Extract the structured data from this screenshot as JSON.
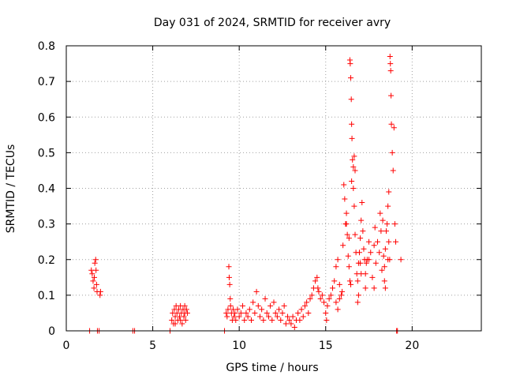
{
  "chart_data": {
    "type": "scatter",
    "title": "Day 031 of 2024, SRMTID for receiver avry",
    "xlabel": "GPS time / hours",
    "ylabel": "SRMTID / TECUs",
    "xlim": [
      0,
      24
    ],
    "ylim": [
      0,
      0.8
    ],
    "xticks": [
      0,
      5,
      10,
      15,
      20
    ],
    "yticks": [
      0,
      0.1,
      0.2,
      0.3,
      0.4,
      0.5,
      0.6,
      0.7,
      0.8
    ],
    "xtick_labels": [
      "0",
      "5",
      "10",
      "15",
      "20"
    ],
    "ytick_labels": [
      "0",
      "0.1",
      "0.2",
      "0.3",
      "0.4",
      "0.5",
      "0.6",
      "0.7",
      "0.8"
    ],
    "grid": true,
    "marker": "+",
    "color": "#ff0000",
    "series": [
      {
        "name": "SRMTID",
        "points": [
          [
            1.35,
            0
          ],
          [
            1.45,
            0.17
          ],
          [
            1.5,
            0.16
          ],
          [
            1.55,
            0.14
          ],
          [
            1.6,
            0.12
          ],
          [
            1.62,
            0.15
          ],
          [
            1.65,
            0.19
          ],
          [
            1.7,
            0.2
          ],
          [
            1.72,
            0.17
          ],
          [
            1.75,
            0.13
          ],
          [
            1.78,
            0.11
          ],
          [
            1.8,
            0.0
          ],
          [
            1.9,
            0.0
          ],
          [
            1.95,
            0.1
          ],
          [
            1.98,
            0.11
          ],
          [
            3.85,
            0
          ],
          [
            3.95,
            0
          ],
          [
            6.0,
            0
          ],
          [
            6.1,
            0.03
          ],
          [
            6.15,
            0.05
          ],
          [
            6.2,
            0.02
          ],
          [
            6.25,
            0.06
          ],
          [
            6.3,
            0.04
          ],
          [
            6.35,
            0.07
          ],
          [
            6.4,
            0.05
          ],
          [
            6.45,
            0.03
          ],
          [
            6.5,
            0.06
          ],
          [
            6.55,
            0.04
          ],
          [
            6.6,
            0.07
          ],
          [
            6.65,
            0.05
          ],
          [
            6.7,
            0.02
          ],
          [
            6.75,
            0.06
          ],
          [
            6.8,
            0.04
          ],
          [
            6.85,
            0.05
          ],
          [
            6.9,
            0.03
          ],
          [
            6.95,
            0.06
          ],
          [
            7.0,
            0.05
          ],
          [
            6.3,
            0.02
          ],
          [
            6.6,
            0.03
          ],
          [
            6.85,
            0.07
          ],
          [
            9.15,
            0
          ],
          [
            9.25,
            0.05
          ],
          [
            9.3,
            0.04
          ],
          [
            9.35,
            0.06
          ],
          [
            9.4,
            0.18
          ],
          [
            9.42,
            0.15
          ],
          [
            9.45,
            0.13
          ],
          [
            9.48,
            0.09
          ],
          [
            9.5,
            0.07
          ],
          [
            9.55,
            0.05
          ],
          [
            9.6,
            0.03
          ],
          [
            9.65,
            0.06
          ],
          [
            9.7,
            0.04
          ],
          [
            9.75,
            0.05
          ],
          [
            9.8,
            0.03
          ],
          [
            9.9,
            0.06
          ],
          [
            10.0,
            0.04
          ],
          [
            10.1,
            0.05
          ],
          [
            10.2,
            0.07
          ],
          [
            10.3,
            0.03
          ],
          [
            10.4,
            0.05
          ],
          [
            10.5,
            0.04
          ],
          [
            10.6,
            0.06
          ],
          [
            10.7,
            0.03
          ],
          [
            10.8,
            0.08
          ],
          [
            10.9,
            0.05
          ],
          [
            11.0,
            0.11
          ],
          [
            11.1,
            0.07
          ],
          [
            11.2,
            0.04
          ],
          [
            11.3,
            0.06
          ],
          [
            11.4,
            0.03
          ],
          [
            11.5,
            0.09
          ],
          [
            11.6,
            0.05
          ],
          [
            11.7,
            0.04
          ],
          [
            11.8,
            0.07
          ],
          [
            11.9,
            0.03
          ],
          [
            12.0,
            0.08
          ],
          [
            12.1,
            0.05
          ],
          [
            12.2,
            0.04
          ],
          [
            12.3,
            0.06
          ],
          [
            12.4,
            0.03
          ],
          [
            12.5,
            0.05
          ],
          [
            12.6,
            0.07
          ],
          [
            12.7,
            0.02
          ],
          [
            12.8,
            0.04
          ],
          [
            12.9,
            0.03
          ],
          [
            13.0,
            0.02
          ],
          [
            13.1,
            0.04
          ],
          [
            13.2,
            0.01
          ],
          [
            13.3,
            0.03
          ],
          [
            13.4,
            0.05
          ],
          [
            13.5,
            0.03
          ],
          [
            13.6,
            0.06
          ],
          [
            13.7,
            0.04
          ],
          [
            13.8,
            0.07
          ],
          [
            13.9,
            0.08
          ],
          [
            14.0,
            0.05
          ],
          [
            14.1,
            0.09
          ],
          [
            14.2,
            0.1
          ],
          [
            14.3,
            0.12
          ],
          [
            14.4,
            0.14
          ],
          [
            14.5,
            0.15
          ],
          [
            14.55,
            0.12
          ],
          [
            14.6,
            0.11
          ],
          [
            14.7,
            0.09
          ],
          [
            14.8,
            0.1
          ],
          [
            14.9,
            0.08
          ],
          [
            15.0,
            0.05
          ],
          [
            15.05,
            0.03
          ],
          [
            15.1,
            0.07
          ],
          [
            15.2,
            0.09
          ],
          [
            15.3,
            0.1
          ],
          [
            15.4,
            0.12
          ],
          [
            15.5,
            0.14
          ],
          [
            15.6,
            0.18
          ],
          [
            15.7,
            0.2
          ],
          [
            15.8,
            0.13
          ],
          [
            15.9,
            0.1
          ],
          [
            15.95,
            0.11
          ],
          [
            16.0,
            0.24
          ],
          [
            16.05,
            0.41
          ],
          [
            16.1,
            0.37
          ],
          [
            16.15,
            0.3
          ],
          [
            16.2,
            0.33
          ],
          [
            16.25,
            0.27
          ],
          [
            16.3,
            0.21
          ],
          [
            16.35,
            0.18
          ],
          [
            16.4,
            0.76
          ],
          [
            16.42,
            0.75
          ],
          [
            16.45,
            0.71
          ],
          [
            16.48,
            0.65
          ],
          [
            16.5,
            0.58
          ],
          [
            16.52,
            0.54
          ],
          [
            16.55,
            0.48
          ],
          [
            16.6,
            0.4
          ],
          [
            16.65,
            0.35
          ],
          [
            16.7,
            0.27
          ],
          [
            16.75,
            0.22
          ],
          [
            16.8,
            0.16
          ],
          [
            16.85,
            0.14
          ],
          [
            16.9,
            0.19
          ],
          [
            16.95,
            0.22
          ],
          [
            17.0,
            0.26
          ],
          [
            17.05,
            0.31
          ],
          [
            17.1,
            0.36
          ],
          [
            17.15,
            0.28
          ],
          [
            17.2,
            0.23
          ],
          [
            17.25,
            0.2
          ],
          [
            17.3,
            0.16
          ],
          [
            17.35,
            0.19
          ],
          [
            17.4,
            0.2
          ],
          [
            17.5,
            0.25
          ],
          [
            17.6,
            0.22
          ],
          [
            17.7,
            0.15
          ],
          [
            17.8,
            0.12
          ],
          [
            17.9,
            0.19
          ],
          [
            18.0,
            0.25
          ],
          [
            18.1,
            0.22
          ],
          [
            18.2,
            0.28
          ],
          [
            18.3,
            0.31
          ],
          [
            18.35,
            0.21
          ],
          [
            18.4,
            0.18
          ],
          [
            18.45,
            0.23
          ],
          [
            18.5,
            0.28
          ],
          [
            18.55,
            0.3
          ],
          [
            18.6,
            0.35
          ],
          [
            18.65,
            0.39
          ],
          [
            18.7,
            0.2
          ],
          [
            18.72,
            0.77
          ],
          [
            18.74,
            0.75
          ],
          [
            18.76,
            0.73
          ],
          [
            18.78,
            0.66
          ],
          [
            18.8,
            0.58
          ],
          [
            18.85,
            0.5
          ],
          [
            18.9,
            0.45
          ],
          [
            18.95,
            0.57
          ],
          [
            19.0,
            0.3
          ],
          [
            19.05,
            0.25
          ],
          [
            19.1,
            0
          ],
          [
            19.15,
            0
          ],
          [
            19.35,
            0.2
          ],
          [
            16.2,
            0.3
          ],
          [
            16.35,
            0.26
          ],
          [
            16.6,
            0.46
          ],
          [
            16.65,
            0.49
          ],
          [
            16.7,
            0.45
          ],
          [
            16.5,
            0.42
          ],
          [
            17.0,
            0.19
          ],
          [
            17.05,
            0.16
          ],
          [
            17.3,
            0.12
          ],
          [
            17.5,
            0.2
          ],
          [
            17.8,
            0.24
          ],
          [
            17.85,
            0.29
          ],
          [
            18.15,
            0.33
          ],
          [
            18.25,
            0.17
          ],
          [
            18.4,
            0.14
          ],
          [
            18.45,
            0.12
          ],
          [
            18.6,
            0.2
          ],
          [
            18.65,
            0.25
          ],
          [
            15.6,
            0.08
          ],
          [
            15.7,
            0.06
          ],
          [
            15.8,
            0.09
          ],
          [
            16.85,
            0.08
          ],
          [
            16.9,
            0.1
          ],
          [
            16.4,
            0.14
          ],
          [
            16.45,
            0.13
          ]
        ]
      }
    ]
  }
}
